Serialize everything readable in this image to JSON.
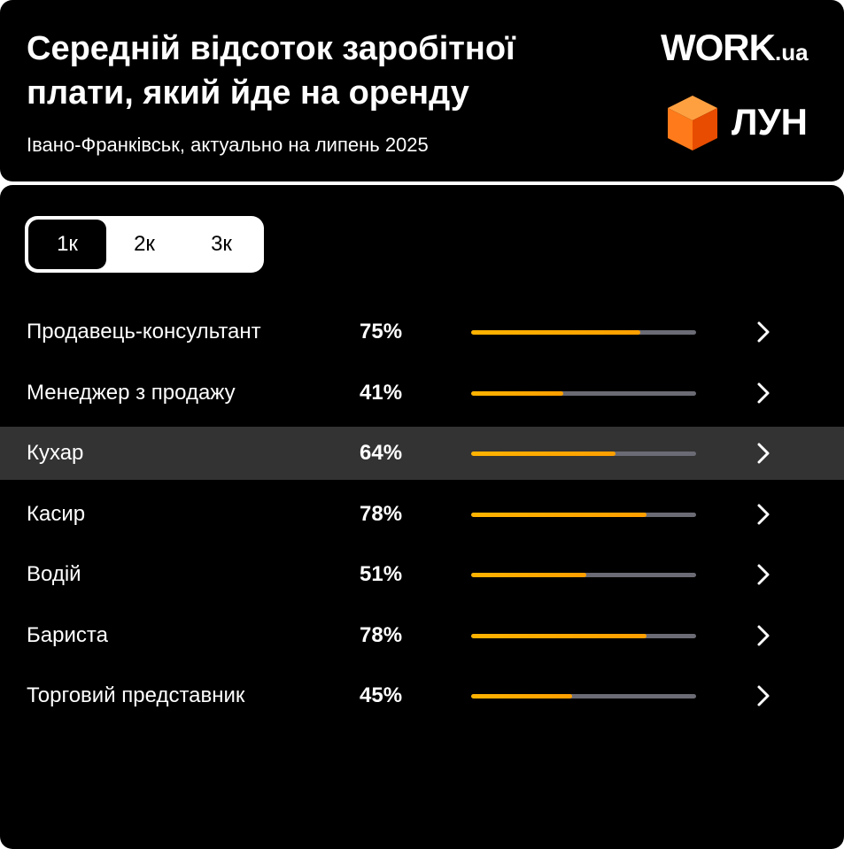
{
  "header": {
    "title": "Середній відсоток заробітної плати, який йде на оренду",
    "subtitle": "Івано-Франківськ, актуально на липень 2025",
    "brand_work": "WORK",
    "brand_work_suffix": ".ua",
    "brand_lun": "ЛУН"
  },
  "tabs": {
    "selected": "1к",
    "items": [
      "1к",
      "2к",
      "3к"
    ]
  },
  "rows": [
    {
      "label": "Продавець-консультант",
      "percent": "75%",
      "value": 75,
      "highlighted": false
    },
    {
      "label": "Менеджер з продажу",
      "percent": "41%",
      "value": 41,
      "highlighted": false
    },
    {
      "label": "Кухар",
      "percent": "64%",
      "value": 64,
      "highlighted": true
    },
    {
      "label": "Касир",
      "percent": "78%",
      "value": 78,
      "highlighted": false
    },
    {
      "label": "Водій",
      "percent": "51%",
      "value": 51,
      "highlighted": false
    },
    {
      "label": "Бариста",
      "percent": "78%",
      "value": 78,
      "highlighted": false
    },
    {
      "label": "Торговий представник",
      "percent": "45%",
      "value": 45,
      "highlighted": false
    }
  ],
  "icons": {
    "row_action": "chevron-right-icon",
    "lun_logo": "orange-cube-icon"
  },
  "colors": {
    "background": "#000000",
    "text": "#ffffff",
    "bar_fill": "#ffa800",
    "bar_track": "#6b6b75",
    "row_highlight": "#333333",
    "cube_orange": "#ff6a00"
  }
}
